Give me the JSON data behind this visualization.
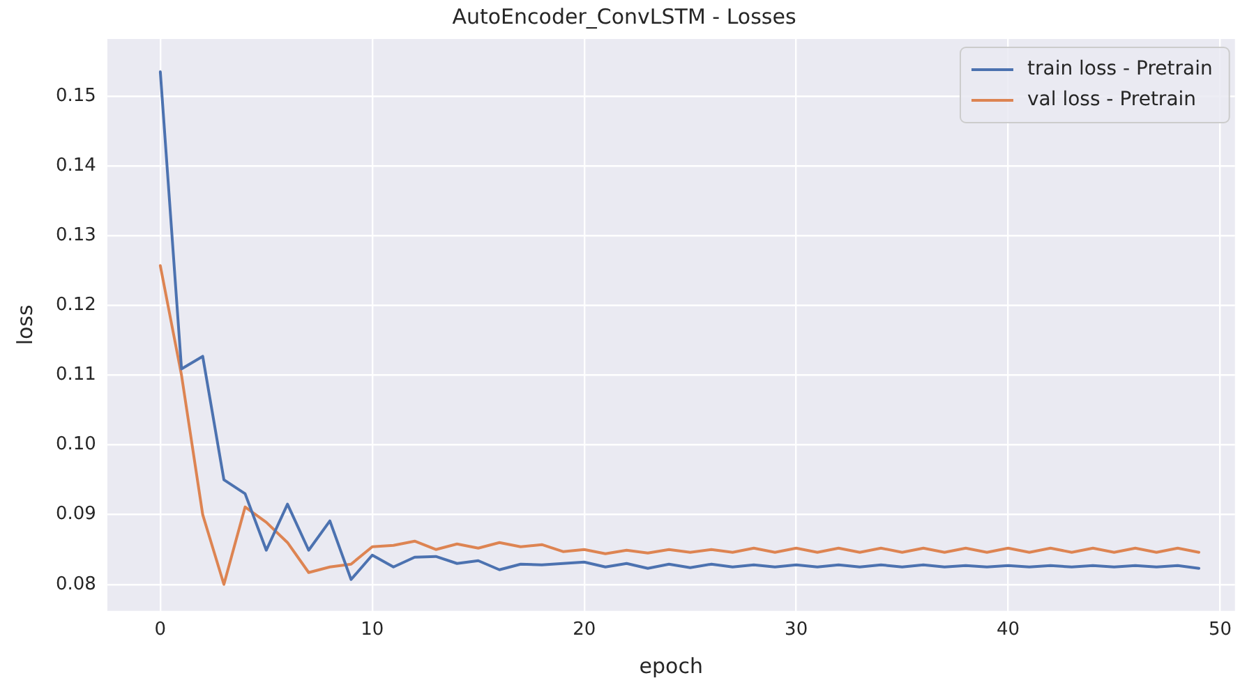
{
  "chart_data": {
    "type": "line",
    "title": "AutoEncoder_ConvLSTM - Losses",
    "xlabel": "epoch",
    "ylabel": "loss",
    "x": [
      0,
      1,
      2,
      3,
      4,
      5,
      6,
      7,
      8,
      9,
      10,
      11,
      12,
      13,
      14,
      15,
      16,
      17,
      18,
      19,
      20,
      21,
      22,
      23,
      24,
      25,
      26,
      27,
      28,
      29,
      30,
      31,
      32,
      33,
      34,
      35,
      36,
      37,
      38,
      39,
      40,
      41,
      42,
      43,
      44,
      45,
      46,
      47,
      48,
      49
    ],
    "series": [
      {
        "name": "train loss - Pretrain",
        "color": "#4c72b0",
        "values": [
          0.1535,
          0.1109,
          0.1127,
          0.095,
          0.093,
          0.0849,
          0.0915,
          0.0849,
          0.0891,
          0.0807,
          0.0842,
          0.0825,
          0.0839,
          0.084,
          0.083,
          0.0834,
          0.0821,
          0.0829,
          0.0828,
          0.083,
          0.0832,
          0.0825,
          0.083,
          0.0823,
          0.0829,
          0.0824,
          0.0829,
          0.0825,
          0.0828,
          0.0825,
          0.0828,
          0.0825,
          0.0828,
          0.0825,
          0.0828,
          0.0825,
          0.0828,
          0.0825,
          0.0827,
          0.0825,
          0.0827,
          0.0825,
          0.0827,
          0.0825,
          0.0827,
          0.0825,
          0.0827,
          0.0825,
          0.0827,
          0.0823
        ]
      },
      {
        "name": "val loss - Pretrain",
        "color": "#dd8452",
        "values": [
          0.1257,
          0.11,
          0.09,
          0.08,
          0.0911,
          0.0889,
          0.086,
          0.0817,
          0.0825,
          0.0829,
          0.0854,
          0.0856,
          0.0862,
          0.085,
          0.0858,
          0.0852,
          0.086,
          0.0854,
          0.0857,
          0.0847,
          0.085,
          0.0844,
          0.0849,
          0.0845,
          0.085,
          0.0846,
          0.085,
          0.0846,
          0.0852,
          0.0846,
          0.0852,
          0.0846,
          0.0852,
          0.0846,
          0.0852,
          0.0846,
          0.0852,
          0.0846,
          0.0852,
          0.0846,
          0.0852,
          0.0846,
          0.0852,
          0.0846,
          0.0852,
          0.0846,
          0.0852,
          0.0846,
          0.0852,
          0.0846
        ]
      }
    ],
    "xlim": [
      -2.5,
      50.7
    ],
    "xticks": [
      0,
      10,
      20,
      30,
      40,
      50
    ],
    "ylim": [
      0.0762,
      0.1582
    ],
    "yticks": [
      0.08,
      0.09,
      {
        "value": 0.1,
        "label": "0.10"
      },
      0.11,
      0.12,
      0.13,
      0.14,
      0.15
    ],
    "grid": true,
    "legend": "top right",
    "marker": "none",
    "line_style": "solid"
  }
}
